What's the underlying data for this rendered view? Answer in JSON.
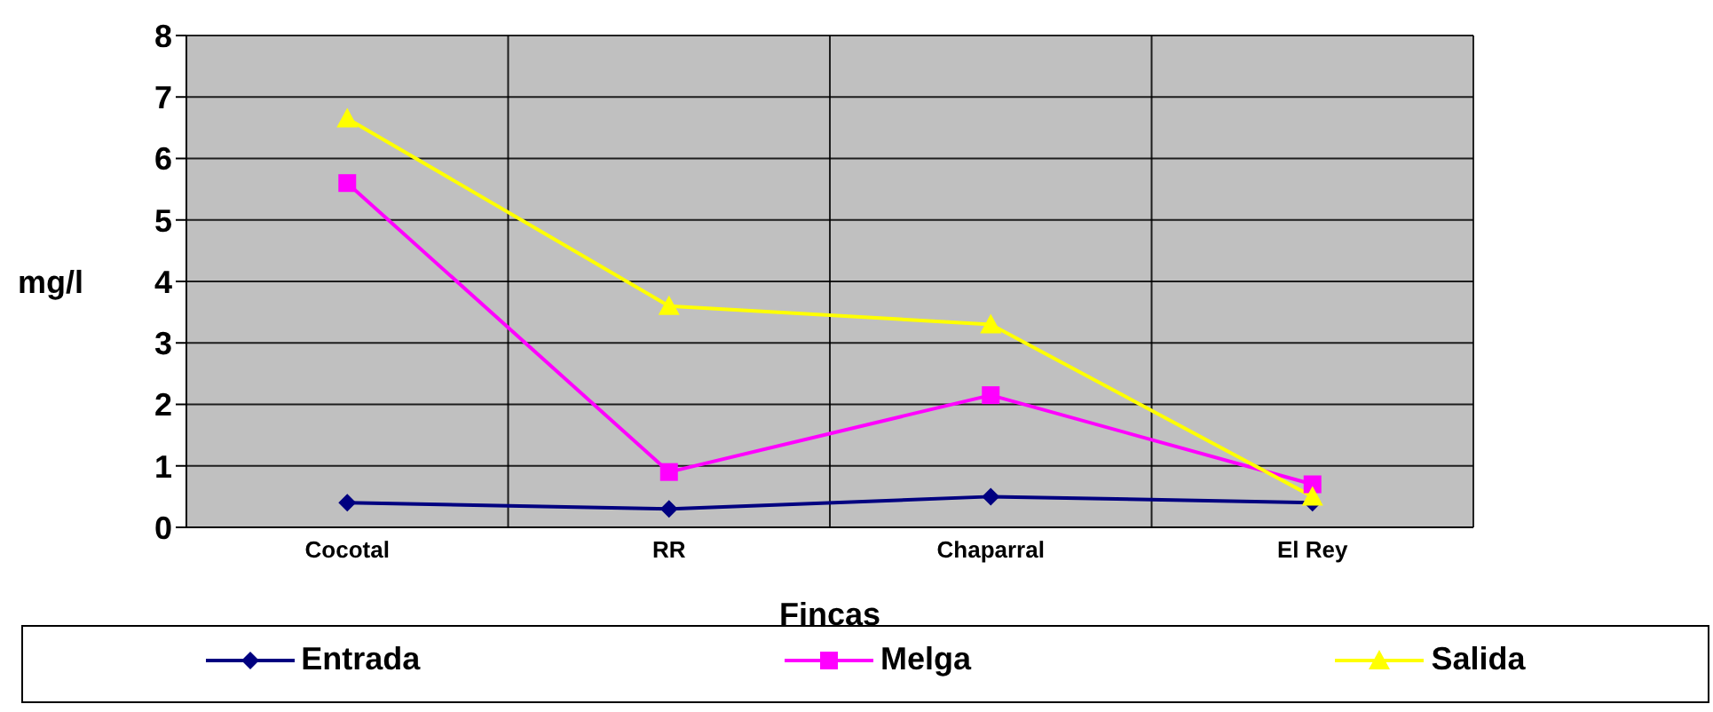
{
  "chart_data": {
    "type": "line",
    "xlabel": "Fincas",
    "ylabel": "mg/l",
    "categories": [
      "Cocotal",
      "RR",
      "Chaparral",
      "El Rey"
    ],
    "series": [
      {
        "name": "Entrada",
        "color": "#000080",
        "marker": "diamond",
        "values": [
          0.4,
          0.3,
          0.5,
          0.4
        ]
      },
      {
        "name": "Melga",
        "color": "#ff00ff",
        "marker": "square",
        "values": [
          5.6,
          0.9,
          2.15,
          0.7
        ]
      },
      {
        "name": "Salida",
        "color": "#ffff00",
        "marker": "triangle",
        "values": [
          6.65,
          3.6,
          3.3,
          0.5
        ]
      }
    ],
    "ylim": [
      0,
      8
    ],
    "yticks": [
      0,
      1,
      2,
      3,
      4,
      5,
      6,
      7,
      8
    ],
    "grid": true,
    "legend": "bottom"
  }
}
